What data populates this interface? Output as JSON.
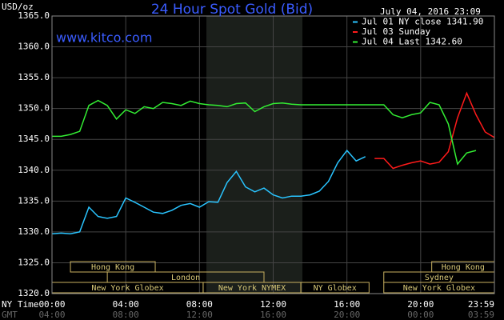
{
  "chart_data": {
    "type": "line",
    "title": "24 Hour Spot Gold (Bid)",
    "timestamp": "July 04, 2016 23:09",
    "y_label": "USD/oz",
    "watermark": "www.kitco.com",
    "x_label": "NY Time",
    "x2_label": "GMT",
    "x": [
      0,
      0.5,
      1,
      1.5,
      2,
      2.5,
      3,
      3.5,
      4,
      4.5,
      5,
      5.5,
      6,
      6.5,
      7,
      7.5,
      8,
      8.5,
      9,
      9.5,
      10,
      10.5,
      11,
      11.5,
      12,
      12.5,
      13,
      13.5,
      14,
      14.5,
      15,
      15.5,
      16,
      16.5,
      17,
      17.5,
      18,
      18.5,
      19,
      19.5,
      20,
      20.5,
      21,
      21.5,
      22,
      22.5,
      23,
      23.5,
      24
    ],
    "series": [
      {
        "name": "Jul 01 NY close 1341.90",
        "color": "#29c4ff",
        "values": [
          1329.7,
          1329.8,
          1329.7,
          1330.0,
          1334.0,
          1332.5,
          1332.2,
          1332.5,
          1335.5,
          1334.8,
          1334.0,
          1333.2,
          1333.0,
          1333.5,
          1334.3,
          1334.6,
          1334.0,
          1334.9,
          1334.8,
          1338.0,
          1339.8,
          1337.3,
          1336.5,
          1337.1,
          1336.0,
          1335.5,
          1335.8,
          1335.8,
          1336.0,
          1336.6,
          1338.2,
          1341.2,
          1343.2,
          1341.5,
          1342.2,
          null,
          null,
          null,
          null,
          null,
          null,
          null,
          null,
          null,
          null,
          null,
          null,
          null,
          null
        ]
      },
      {
        "name": "Jul 03 Sunday",
        "color": "#ff1a1a",
        "values": [
          null,
          null,
          null,
          null,
          null,
          null,
          null,
          null,
          null,
          null,
          null,
          null,
          null,
          null,
          null,
          null,
          null,
          null,
          null,
          null,
          null,
          null,
          null,
          null,
          null,
          null,
          null,
          null,
          null,
          null,
          null,
          null,
          null,
          null,
          null,
          1341.9,
          1341.9,
          1340.3,
          1340.8,
          1341.2,
          1341.5,
          1341.0,
          1341.3,
          1343.0,
          1348.5,
          1352.5,
          1349.0,
          1346.2,
          1345.3
        ]
      },
      {
        "name": "Jul 04 Last 1342.60",
        "color": "#33ee33",
        "values": [
          1345.5,
          1345.5,
          1345.8,
          1346.3,
          1350.5,
          1351.3,
          1350.5,
          1348.3,
          1349.8,
          1349.2,
          1350.3,
          1350.0,
          1351.0,
          1350.8,
          1350.5,
          1351.2,
          1350.8,
          1350.6,
          1350.5,
          1350.3,
          1350.8,
          1350.9,
          1349.5,
          1350.3,
          1350.8,
          1350.9,
          1350.7,
          1350.6,
          1350.6,
          1350.6,
          1350.6,
          1350.6,
          1350.6,
          1350.6,
          1350.6,
          1350.6,
          1350.6,
          1349.0,
          1348.5,
          1349.0,
          1349.3,
          1351.0,
          1350.6,
          1347.5,
          1341.0,
          1342.8,
          1343.2,
          null,
          null
        ]
      }
    ],
    "xlim": [
      0,
      24
    ],
    "xticks": [
      {
        "value": 0,
        "label": "00:00"
      },
      {
        "value": 4,
        "label": "04:00"
      },
      {
        "value": 8,
        "label": "08:00"
      },
      {
        "value": 12,
        "label": "12:00"
      },
      {
        "value": 16,
        "label": "16:00"
      },
      {
        "value": 20,
        "label": "20:00"
      },
      {
        "value": 24,
        "label": "23:59"
      }
    ],
    "gmt_ticks": [
      "04:00",
      "08:00",
      "12:00",
      "16:00",
      "20:00",
      "00:00",
      "03:59"
    ],
    "ylim": [
      1320,
      1365
    ],
    "yticks": [
      {
        "value": 1320,
        "label": "1320.0"
      },
      {
        "value": 1325,
        "label": "1325.0"
      },
      {
        "value": 1330,
        "label": "1330.0"
      },
      {
        "value": 1335,
        "label": "1335.0"
      },
      {
        "value": 1340,
        "label": "1340.0"
      },
      {
        "value": 1345,
        "label": "1345.0"
      },
      {
        "value": 1350,
        "label": "1350.0"
      },
      {
        "value": 1355,
        "label": "1355.0"
      },
      {
        "value": 1360,
        "label": "1360.0"
      },
      {
        "value": 1365,
        "label": "1365.0"
      }
    ],
    "grid": true,
    "sessions": [
      {
        "label": "Hong Kong",
        "start": 1,
        "end": 5.6,
        "row": 0
      },
      {
        "label": "London",
        "start": 3,
        "end": 11.5,
        "row": 1
      },
      {
        "label": "New York Globex",
        "start": 0,
        "end": 8.2,
        "row": 2
      },
      {
        "label": "New York NYMEX",
        "start": 8.2,
        "end": 13.5,
        "row": 2
      },
      {
        "label": "NY Globex",
        "start": 13.5,
        "end": 17.2,
        "row": 2
      },
      {
        "label": "Hong Kong",
        "start": 20.6,
        "end": 24,
        "row": 0
      },
      {
        "label": "Sydney",
        "start": 18,
        "end": 24,
        "row": 1
      },
      {
        "label": "New York Globex",
        "start": 18,
        "end": 24,
        "row": 2
      }
    ]
  }
}
